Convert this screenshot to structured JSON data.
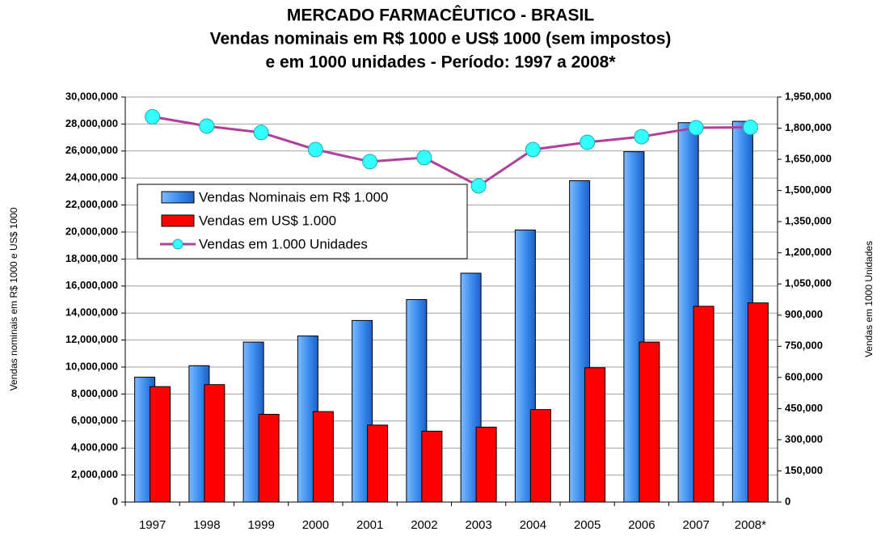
{
  "chart_data": {
    "type": "bar-line",
    "title": "MERCADO FARMACÊUTICO - BRASIL",
    "subtitle": [
      "Vendas nominais em R$ 1000 e US$ 1000 (sem impostos)",
      "e em 1000 unidades - Período: 1997 a 2008*"
    ],
    "ylabel": "Vendas nominais em R$ 1000 e US$ 1000",
    "y2label": "Vendas em 1000 Unidades",
    "categories": [
      "1997",
      "1998",
      "1999",
      "2000",
      "2001",
      "2002",
      "2003",
      "2004",
      "2005",
      "2006",
      "2007",
      "2008*"
    ],
    "series": [
      {
        "name": "Vendas Nominais em R$ 1.000",
        "color": "#3d8ff0",
        "type": "bar",
        "values": [
          9250000,
          10100000,
          11850000,
          12300000,
          13450000,
          15000000,
          16950000,
          20150000,
          23800000,
          25950000,
          28100000,
          28200000
        ]
      },
      {
        "name": "Vendas em US$ 1.000",
        "color": "#ff0000",
        "type": "bar",
        "values": [
          8550000,
          8700000,
          6500000,
          6700000,
          5700000,
          5250000,
          5550000,
          6850000,
          9950000,
          11850000,
          14500000,
          14750000
        ]
      },
      {
        "name": "Vendas em 1.000 Unidades",
        "color": "#b0409a",
        "marker_color": "#33ffff",
        "type": "line",
        "axis": "y2",
        "values": [
          1855000,
          1810000,
          1779000,
          1697000,
          1639000,
          1658000,
          1522000,
          1697000,
          1732000,
          1759000,
          1802000,
          1804000
        ]
      }
    ],
    "ylim": [
      0,
      30000000
    ],
    "yticks": [
      0,
      {
        "value": 2000000,
        "label": "2,000,000"
      },
      {
        "value": 4000000,
        "label": "4,000,000"
      },
      {
        "value": 6000000,
        "label": "6,000,000"
      },
      {
        "value": 8000000,
        "label": "8,000,000"
      },
      {
        "value": 10000000,
        "label": "10,000,000"
      },
      {
        "value": 12000000,
        "label": "12,000,000"
      },
      {
        "value": 14000000,
        "label": "14,000,000"
      },
      {
        "value": 16000000,
        "label": "16,000,000"
      },
      {
        "value": 18000000,
        "label": "18,000,000"
      },
      {
        "value": 20000000,
        "label": "20,000,000"
      },
      {
        "value": 22000000,
        "label": "22,000,000"
      },
      {
        "value": 24000000,
        "label": "24,000,000"
      },
      {
        "value": 26000000,
        "label": "26,000,000"
      },
      {
        "value": 28000000,
        "label": "28,000,000"
      },
      {
        "value": 30000000,
        "label": "30,000,000"
      }
    ],
    "y2lim": [
      0,
      1950000
    ],
    "y2ticks": [
      0,
      {
        "value": 150000,
        "label": "150,000"
      },
      {
        "value": 300000,
        "label": "300,000"
      },
      {
        "value": 450000,
        "label": "450,000"
      },
      {
        "value": 600000,
        "label": "600,000"
      },
      {
        "value": 750000,
        "label": "750,000"
      },
      {
        "value": 900000,
        "label": "900,000"
      },
      {
        "value": 1050000,
        "label": "1,050,000"
      },
      {
        "value": 1200000,
        "label": "1,200,000"
      },
      {
        "value": 1350000,
        "label": "1,350,000"
      },
      {
        "value": 1500000,
        "label": "1,500,000"
      },
      {
        "value": 1650000,
        "label": "1,650,000"
      },
      {
        "value": 1800000,
        "label": "1,800,000"
      },
      {
        "value": 1950000,
        "label": "1,950,000"
      }
    ],
    "grid": true
  }
}
